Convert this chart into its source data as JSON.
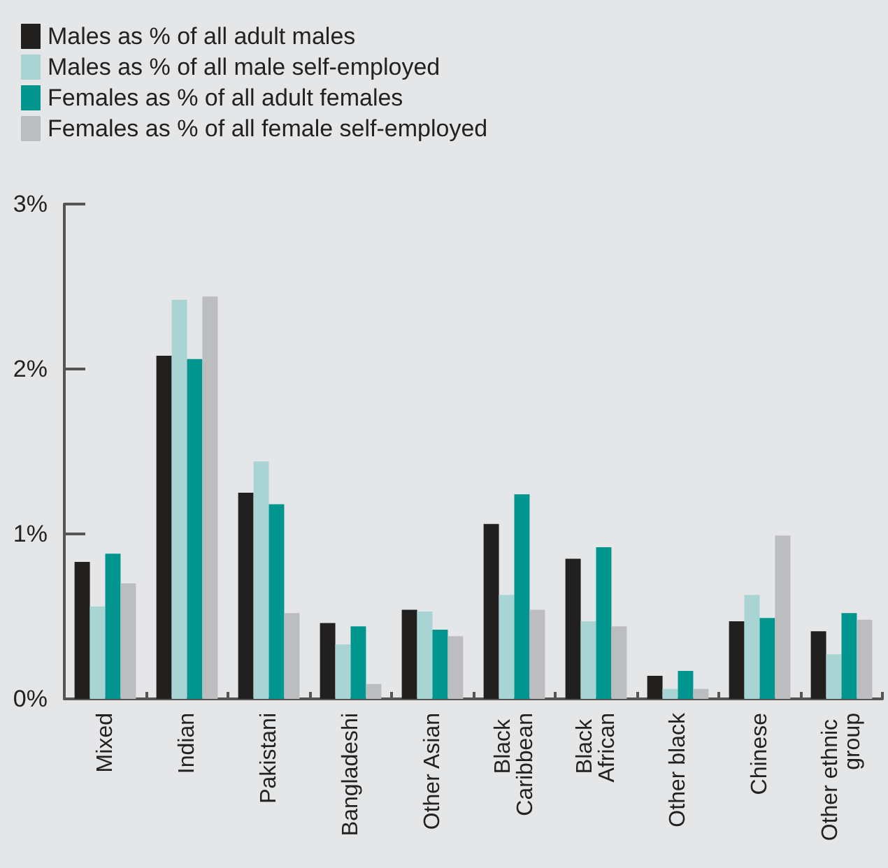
{
  "chart_data": {
    "type": "bar",
    "categories": [
      "Mixed",
      "Indian",
      "Pakistani",
      "Bangladeshi",
      "Other Asian",
      "Black Caribbean",
      "Black African",
      "Other black",
      "Chinese",
      "Other ethnic group"
    ],
    "series": [
      {
        "name": "Males as % of all adult males",
        "color": "#221f1f",
        "values": [
          0.83,
          2.08,
          1.25,
          0.46,
          0.54,
          1.06,
          0.85,
          0.14,
          0.47,
          0.41
        ]
      },
      {
        "name": "Males as % of all male self-employed",
        "color": "#a8d5d4",
        "values": [
          0.56,
          2.42,
          1.44,
          0.33,
          0.53,
          0.63,
          0.47,
          0.06,
          0.63,
          0.27
        ]
      },
      {
        "name": "Females as % of all adult females",
        "color": "#00968f",
        "values": [
          0.88,
          2.06,
          1.18,
          0.44,
          0.42,
          1.24,
          0.92,
          0.17,
          0.49,
          0.52
        ]
      },
      {
        "name": "Females as % of all female self-employed",
        "color": "#bcbdbf",
        "values": [
          0.7,
          2.44,
          0.52,
          0.09,
          0.38,
          0.54,
          0.44,
          0.06,
          0.99,
          0.48
        ]
      }
    ],
    "ylim": [
      0,
      3
    ],
    "yticks": [
      {
        "value": 0,
        "label": "0%"
      },
      {
        "value": 1,
        "label": "1%"
      },
      {
        "value": 2,
        "label": "2%"
      },
      {
        "value": 3,
        "label": "3%"
      }
    ],
    "grid": false,
    "legend": "top left"
  }
}
